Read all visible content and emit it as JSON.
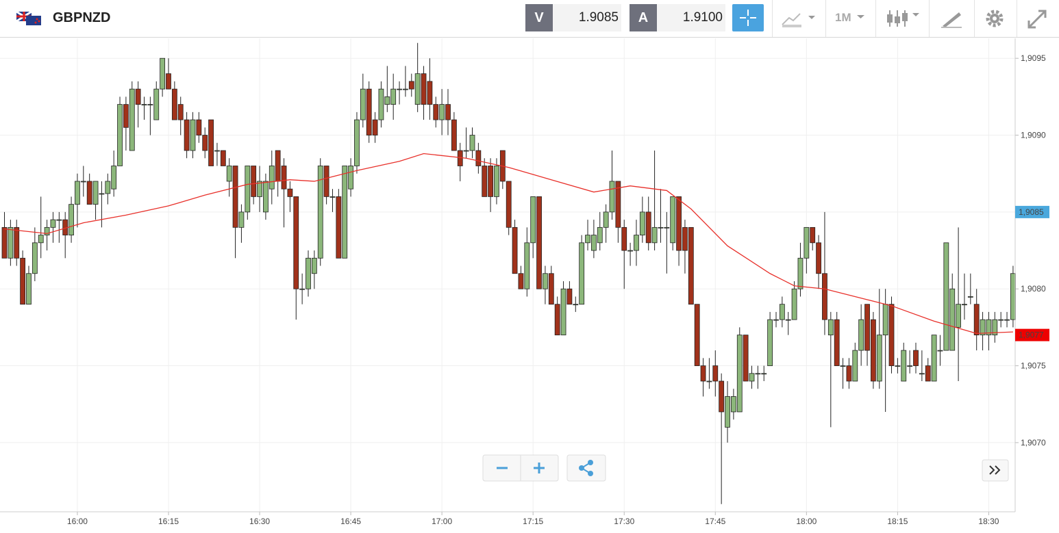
{
  "header": {
    "symbol": "GBPNZD",
    "bid_label": "V",
    "bid": "1.9085",
    "ask_label": "A",
    "ask": "1.9100",
    "timeframe": "1M"
  },
  "chart_data": {
    "type": "candlestick",
    "x": [
      "15:48",
      "15:49",
      "15:50",
      "15:51",
      "15:52",
      "15:53",
      "15:54",
      "15:55",
      "15:56",
      "15:57",
      "15:58",
      "15:59",
      "16:00",
      "16:01",
      "16:02",
      "16:03",
      "16:04",
      "16:05",
      "16:06",
      "16:07",
      "16:08",
      "16:09",
      "16:10",
      "16:11",
      "16:12",
      "16:13",
      "16:14",
      "16:15",
      "16:16",
      "16:17",
      "16:18",
      "16:19",
      "16:20",
      "16:21",
      "16:22",
      "16:23",
      "16:24",
      "16:25",
      "16:26",
      "16:27",
      "16:28",
      "16:29",
      "16:30",
      "16:31",
      "16:32",
      "16:33",
      "16:34",
      "16:35",
      "16:36",
      "16:37",
      "16:38",
      "16:39",
      "16:40",
      "16:41",
      "16:42",
      "16:43",
      "16:44",
      "16:45",
      "16:46",
      "16:47",
      "16:48",
      "16:49",
      "16:50",
      "16:51",
      "16:52",
      "16:53",
      "16:54",
      "16:55",
      "16:56",
      "16:57",
      "16:58",
      "16:59",
      "17:00",
      "17:01",
      "17:02",
      "17:03",
      "17:04",
      "17:05",
      "17:06",
      "17:07",
      "17:08",
      "17:09",
      "17:10",
      "17:11",
      "17:12",
      "17:13",
      "17:14",
      "17:15",
      "17:16",
      "17:17",
      "17:18",
      "17:19",
      "17:20",
      "17:21",
      "17:22",
      "17:23",
      "17:24",
      "17:25",
      "17:26",
      "17:27",
      "17:28",
      "17:29",
      "17:30",
      "17:31",
      "17:32",
      "17:33",
      "17:34",
      "17:35",
      "17:36",
      "17:37",
      "17:38",
      "17:39",
      "17:40",
      "17:41",
      "17:42",
      "17:43",
      "17:44",
      "17:45",
      "17:46",
      "17:47",
      "17:48",
      "17:49",
      "17:50",
      "17:51",
      "17:52",
      "17:53",
      "17:54",
      "17:55",
      "17:56",
      "17:57",
      "17:58",
      "17:59",
      "18:00",
      "18:01",
      "18:02",
      "18:03",
      "18:04",
      "18:05",
      "18:06",
      "18:07",
      "18:08",
      "18:09",
      "18:10",
      "18:11",
      "18:12",
      "18:13",
      "18:14",
      "18:15",
      "18:16",
      "18:17",
      "18:18",
      "18:19",
      "18:20",
      "18:21",
      "18:22",
      "18:23",
      "18:24",
      "18:25",
      "18:26",
      "18:27",
      "18:28",
      "18:29",
      "18:30",
      "18:31",
      "18:32",
      "18:33",
      "18:34"
    ],
    "ohlc": [
      [
        1.9084,
        1.9085,
        1.9082,
        1.9082
      ],
      [
        1.9082,
        1.90845,
        1.90815,
        1.9084
      ],
      [
        1.9084,
        1.90845,
        1.90815,
        1.9082
      ],
      [
        1.9082,
        1.90825,
        1.9079,
        1.9079
      ],
      [
        1.9079,
        1.90815,
        1.9079,
        1.9081
      ],
      [
        1.9081,
        1.9084,
        1.90805,
        1.9083
      ],
      [
        1.9083,
        1.9086,
        1.9082,
        1.90835
      ],
      [
        1.90835,
        1.90845,
        1.90825,
        1.9084
      ],
      [
        1.9084,
        1.9085,
        1.9083,
        1.90845
      ],
      [
        1.90845,
        1.9085,
        1.9083,
        1.90845
      ],
      [
        1.90845,
        1.9085,
        1.9082,
        1.90835
      ],
      [
        1.90835,
        1.9086,
        1.9083,
        1.90855
      ],
      [
        1.90855,
        1.90875,
        1.9084,
        1.9087
      ],
      [
        1.9087,
        1.9088,
        1.9086,
        1.9087
      ],
      [
        1.9087,
        1.90875,
        1.90855,
        1.90855
      ],
      [
        1.90855,
        1.9087,
        1.90845,
        1.9087
      ],
      [
        1.90862,
        1.9087,
        1.9084,
        1.90862
      ],
      [
        1.90862,
        1.90875,
        1.90855,
        1.9087
      ],
      [
        1.90865,
        1.9089,
        1.9086,
        1.9088
      ],
      [
        1.9088,
        1.90925,
        1.9088,
        1.9092
      ],
      [
        1.9092,
        1.90925,
        1.9089,
        1.90905
      ],
      [
        1.9089,
        1.90935,
        1.9089,
        1.9093
      ],
      [
        1.9093,
        1.90935,
        1.90905,
        1.9092
      ],
      [
        1.9092,
        1.90925,
        1.9091,
        1.9092
      ],
      [
        1.9092,
        1.90925,
        1.909,
        1.9092
      ],
      [
        1.9091,
        1.90935,
        1.9091,
        1.9093
      ],
      [
        1.9093,
        1.9095,
        1.90925,
        1.9095
      ],
      [
        1.9094,
        1.9095,
        1.9093,
        1.9093
      ],
      [
        1.9093,
        1.90935,
        1.9091,
        1.9091
      ],
      [
        1.9092,
        1.90925,
        1.909,
        1.9091
      ],
      [
        1.9091,
        1.90915,
        1.90885,
        1.9089
      ],
      [
        1.9089,
        1.90915,
        1.90885,
        1.9091
      ],
      [
        1.9091,
        1.90915,
        1.90895,
        1.909
      ],
      [
        1.909,
        1.90905,
        1.90885,
        1.9089
      ],
      [
        1.9091,
        1.9091,
        1.9088,
        1.9088
      ],
      [
        1.9089,
        1.90895,
        1.9088,
        1.9089
      ],
      [
        1.9089,
        1.9089,
        1.9088,
        1.9088
      ],
      [
        1.9087,
        1.90885,
        1.9086,
        1.9088
      ],
      [
        1.9088,
        1.9088,
        1.9082,
        1.9084
      ],
      [
        1.9084,
        1.90855,
        1.9083,
        1.9085
      ],
      [
        1.9085,
        1.9088,
        1.90845,
        1.9088
      ],
      [
        1.9088,
        1.9088,
        1.90855,
        1.9086
      ],
      [
        1.9086,
        1.9088,
        1.9085,
        1.9087
      ],
      [
        1.9085,
        1.90875,
        1.90845,
        1.9087
      ],
      [
        1.90865,
        1.9089,
        1.90855,
        1.9088
      ],
      [
        1.9089,
        1.9089,
        1.9086,
        1.9087
      ],
      [
        1.9088,
        1.90885,
        1.9084,
        1.90865
      ],
      [
        1.90865,
        1.9087,
        1.9085,
        1.9086
      ],
      [
        1.9086,
        1.9086,
        1.9078,
        1.908
      ],
      [
        1.908,
        1.9081,
        1.9079,
        1.908
      ],
      [
        1.908,
        1.90825,
        1.90795,
        1.9082
      ],
      [
        1.9081,
        1.90825,
        1.908,
        1.9082
      ],
      [
        1.9082,
        1.90885,
        1.90815,
        1.9088
      ],
      [
        1.9088,
        1.9088,
        1.90855,
        1.9086
      ],
      [
        1.9086,
        1.90865,
        1.9085,
        1.9086
      ],
      [
        1.9086,
        1.90865,
        1.9082,
        1.9082
      ],
      [
        1.9082,
        1.9088,
        1.9082,
        1.9088
      ],
      [
        1.90865,
        1.90885,
        1.9086,
        1.9088
      ],
      [
        1.9088,
        1.90915,
        1.90875,
        1.9091
      ],
      [
        1.9091,
        1.9094,
        1.90905,
        1.9093
      ],
      [
        1.9093,
        1.90935,
        1.90895,
        1.909
      ],
      [
        1.9091,
        1.90915,
        1.90895,
        1.909
      ],
      [
        1.9091,
        1.90935,
        1.90905,
        1.9093
      ],
      [
        1.9092,
        1.90945,
        1.90915,
        1.90925
      ],
      [
        1.9092,
        1.9094,
        1.9091,
        1.9093
      ],
      [
        1.9093,
        1.90935,
        1.9092,
        1.9093
      ],
      [
        1.9093,
        1.90945,
        1.90925,
        1.9093
      ],
      [
        1.90935,
        1.9094,
        1.90925,
        1.9093
      ],
      [
        1.9092,
        1.9096,
        1.90915,
        1.9094
      ],
      [
        1.9094,
        1.90945,
        1.9091,
        1.9092
      ],
      [
        1.90935,
        1.9095,
        1.9091,
        1.9092
      ],
      [
        1.9092,
        1.90925,
        1.90905,
        1.9091
      ],
      [
        1.9091,
        1.9093,
        1.909,
        1.9092
      ],
      [
        1.9092,
        1.9093,
        1.909,
        1.9091
      ],
      [
        1.9091,
        1.90915,
        1.9089,
        1.9089
      ],
      [
        1.9089,
        1.90895,
        1.9087,
        1.9088
      ],
      [
        1.9089,
        1.90905,
        1.90885,
        1.9089
      ],
      [
        1.9089,
        1.90905,
        1.90885,
        1.909
      ],
      [
        1.9089,
        1.90895,
        1.90875,
        1.9088
      ],
      [
        1.9088,
        1.90885,
        1.9086,
        1.9086
      ],
      [
        1.9088,
        1.90885,
        1.9085,
        1.9086
      ],
      [
        1.9086,
        1.90885,
        1.90855,
        1.9088
      ],
      [
        1.9089,
        1.9089,
        1.90865,
        1.9087
      ],
      [
        1.9087,
        1.9087,
        1.90835,
        1.9084
      ],
      [
        1.9084,
        1.90845,
        1.9081,
        1.9081
      ],
      [
        1.9081,
        1.90815,
        1.908,
        1.908
      ],
      [
        1.908,
        1.9084,
        1.90795,
        1.9083
      ],
      [
        1.9083,
        1.9086,
        1.9082,
        1.9086
      ],
      [
        1.9086,
        1.9086,
        1.908,
        1.908
      ],
      [
        1.908,
        1.90815,
        1.9079,
        1.9081
      ],
      [
        1.9081,
        1.90815,
        1.9079,
        1.9079
      ],
      [
        1.9079,
        1.90795,
        1.9077,
        1.9077
      ],
      [
        1.9077,
        1.90805,
        1.9077,
        1.908
      ],
      [
        1.908,
        1.90805,
        1.9079,
        1.9079
      ],
      [
        1.9079,
        1.90795,
        1.90785,
        1.9079
      ],
      [
        1.9079,
        1.90835,
        1.9079,
        1.9083
      ],
      [
        1.9083,
        1.90845,
        1.90825,
        1.90835
      ],
      [
        1.90825,
        1.90845,
        1.9082,
        1.90835
      ],
      [
        1.9083,
        1.9085,
        1.90825,
        1.9084
      ],
      [
        1.9084,
        1.90855,
        1.9083,
        1.9085
      ],
      [
        1.9085,
        1.9089,
        1.90845,
        1.9087
      ],
      [
        1.9087,
        1.9087,
        1.9083,
        1.9084
      ],
      [
        1.9084,
        1.90845,
        1.908,
        1.90825
      ],
      [
        1.90825,
        1.9083,
        1.90815,
        1.90825
      ],
      [
        1.90825,
        1.90845,
        1.90815,
        1.90835
      ],
      [
        1.90835,
        1.9086,
        1.9083,
        1.9085
      ],
      [
        1.9085,
        1.9086,
        1.90825,
        1.9083
      ],
      [
        1.9083,
        1.9089,
        1.90825,
        1.9084
      ],
      [
        1.9084,
        1.90865,
        1.9083,
        1.9084
      ],
      [
        1.9084,
        1.9085,
        1.9081,
        1.9084
      ],
      [
        1.9083,
        1.9086,
        1.90825,
        1.9086
      ],
      [
        1.9086,
        1.9086,
        1.90815,
        1.90825
      ],
      [
        1.9084,
        1.90845,
        1.9081,
        1.90825
      ],
      [
        1.9084,
        1.9084,
        1.9079,
        1.9079
      ],
      [
        1.9079,
        1.9079,
        1.9075,
        1.9075
      ],
      [
        1.9075,
        1.90755,
        1.9073,
        1.9074
      ],
      [
        1.9074,
        1.90755,
        1.90735,
        1.9074
      ],
      [
        1.9075,
        1.9076,
        1.9073,
        1.9074
      ],
      [
        1.9074,
        1.90745,
        1.9066,
        1.9072
      ],
      [
        1.9071,
        1.9074,
        1.907,
        1.9073
      ],
      [
        1.9072,
        1.90735,
        1.90715,
        1.9073
      ],
      [
        1.9072,
        1.90775,
        1.9072,
        1.9077
      ],
      [
        1.9077,
        1.9077,
        1.9074,
        1.9074
      ],
      [
        1.9074,
        1.9075,
        1.90735,
        1.90745
      ],
      [
        1.90745,
        1.9075,
        1.90735,
        1.90745
      ],
      [
        1.90745,
        1.9075,
        1.9074,
        1.90745
      ],
      [
        1.9075,
        1.90785,
        1.9075,
        1.9078
      ],
      [
        1.9078,
        1.90785,
        1.90775,
        1.9078
      ],
      [
        1.9078,
        1.90795,
        1.90775,
        1.9079
      ],
      [
        1.9078,
        1.90785,
        1.9077,
        1.9078
      ],
      [
        1.9078,
        1.90805,
        1.9078,
        1.908
      ],
      [
        1.908,
        1.9083,
        1.90795,
        1.9082
      ],
      [
        1.9082,
        1.9084,
        1.9081,
        1.9084
      ],
      [
        1.9084,
        1.9084,
        1.90825,
        1.9083
      ],
      [
        1.9083,
        1.90835,
        1.908,
        1.9081
      ],
      [
        1.9081,
        1.9085,
        1.9077,
        1.9078
      ],
      [
        1.9077,
        1.90785,
        1.9071,
        1.9078
      ],
      [
        1.9078,
        1.90785,
        1.9075,
        1.9075
      ],
      [
        1.9075,
        1.90755,
        1.90735,
        1.9075
      ],
      [
        1.9075,
        1.90755,
        1.90735,
        1.9074
      ],
      [
        1.9074,
        1.90765,
        1.9074,
        1.9076
      ],
      [
        1.9076,
        1.9079,
        1.9075,
        1.9078
      ],
      [
        1.9079,
        1.9079,
        1.9075,
        1.9076
      ],
      [
        1.9078,
        1.90785,
        1.90735,
        1.9074
      ],
      [
        1.9074,
        1.908,
        1.90735,
        1.9077
      ],
      [
        1.9077,
        1.908,
        1.9072,
        1.9079
      ],
      [
        1.9079,
        1.90795,
        1.90745,
        1.9075
      ],
      [
        1.9075,
        1.90755,
        1.90745,
        1.9075
      ],
      [
        1.9074,
        1.90765,
        1.9074,
        1.9076
      ],
      [
        1.9075,
        1.9076,
        1.90745,
        1.9075
      ],
      [
        1.9076,
        1.90765,
        1.90745,
        1.9075
      ],
      [
        1.90745,
        1.9076,
        1.9074,
        1.90745
      ],
      [
        1.9075,
        1.90755,
        1.9074,
        1.9074
      ],
      [
        1.9074,
        1.9077,
        1.9074,
        1.9077
      ],
      [
        1.9076,
        1.9077,
        1.9075,
        1.9076
      ],
      [
        1.9076,
        1.9083,
        1.9076,
        1.9083
      ],
      [
        1.9076,
        1.9081,
        1.9076,
        1.908
      ],
      [
        1.90775,
        1.9084,
        1.9074,
        1.9079
      ],
      [
        1.9079,
        1.9081,
        1.9078,
        1.9079
      ],
      [
        1.90795,
        1.9081,
        1.9079,
        1.90795
      ],
      [
        1.9079,
        1.908,
        1.9076,
        1.9077
      ],
      [
        1.9077,
        1.90785,
        1.9076,
        1.9078
      ],
      [
        1.9077,
        1.90785,
        1.9076,
        1.9078
      ],
      [
        1.9077,
        1.90785,
        1.90765,
        1.9078
      ],
      [
        1.9078,
        1.90785,
        1.90775,
        1.9078
      ],
      [
        1.9078,
        1.90785,
        1.90775,
        1.9078
      ],
      [
        1.9078,
        1.90815,
        1.90775,
        1.9081
      ]
    ],
    "up_color": "#8cb77b",
    "down_color": "#a1321b",
    "overlay": {
      "color": "#e8302a",
      "x": [
        "15:48",
        "15:55",
        "16:01",
        "16:08",
        "16:15",
        "16:21",
        "16:28",
        "16:35",
        "16:39",
        "16:46",
        "16:53",
        "16:57",
        "17:04",
        "17:11",
        "17:18",
        "17:25",
        "17:31",
        "17:37",
        "17:41",
        "17:47",
        "17:54",
        "17:58",
        "18:03",
        "18:10",
        "18:14",
        "18:21",
        "18:28",
        "18:34"
      ],
      "values": [
        1.90839,
        1.90836,
        1.90843,
        1.90848,
        1.90854,
        1.90861,
        1.90868,
        1.90871,
        1.9087,
        1.90877,
        1.90883,
        1.90888,
        1.90885,
        1.90879,
        1.90871,
        1.90863,
        1.90867,
        1.90864,
        1.90852,
        1.90828,
        1.9081,
        1.90802,
        1.908,
        1.90793,
        1.90789,
        1.90779,
        1.90771,
        1.90772
      ]
    },
    "ylim": [
      1.90655,
      1.90963
    ],
    "yticks": [
      {
        "value": 1.907,
        "label": "1,9070"
      },
      {
        "value": 1.9075,
        "label": "1,9075"
      },
      {
        "value": 1.908,
        "label": "1,9080"
      },
      {
        "value": 1.9085,
        "label": "1,9085"
      },
      {
        "value": 1.909,
        "label": "1,9090"
      },
      {
        "value": 1.9095,
        "label": "1,9095"
      }
    ],
    "xticks": [
      "16:00",
      "16:15",
      "16:30",
      "16:45",
      "17:00",
      "17:15",
      "17:30",
      "17:45",
      "18:00",
      "18:15",
      "18:30"
    ],
    "price_markers": [
      {
        "value": 1.9085,
        "label": "1,9085",
        "color": "#4aa8dd"
      },
      {
        "value": 1.9077,
        "label": "1,9077",
        "color": "#ee0000"
      }
    ],
    "grid": true
  }
}
